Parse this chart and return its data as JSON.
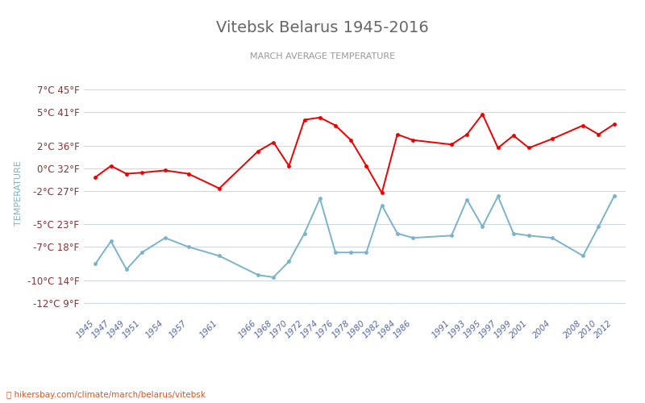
{
  "title": "Vitebsk Belarus 1945-2016",
  "subtitle": "MARCH AVERAGE TEMPERATURE",
  "ylabel": "TEMPERATURE",
  "url_text": "hikersbay.com/climate/march/belarus/vitebsk",
  "years": [
    1945,
    1947,
    1949,
    1951,
    1954,
    1957,
    1961,
    1966,
    1968,
    1970,
    1972,
    1974,
    1976,
    1978,
    1980,
    1982,
    1984,
    1986,
    1991,
    1993,
    1995,
    1997,
    1999,
    2001,
    2004,
    2008,
    2010,
    2012
  ],
  "day": [
    -0.8,
    0.2,
    -0.5,
    -0.4,
    -0.2,
    -0.5,
    -1.8,
    1.5,
    2.3,
    0.2,
    4.3,
    4.5,
    3.8,
    2.5,
    0.2,
    -2.2,
    3.0,
    2.5,
    2.1,
    3.0,
    4.8,
    1.8,
    2.9,
    1.8,
    2.6,
    3.8,
    3.0,
    3.9
  ],
  "night": [
    -8.5,
    -6.5,
    -9.0,
    -7.5,
    -6.2,
    -7.0,
    -7.8,
    -9.5,
    -9.7,
    -8.3,
    -5.8,
    -2.7,
    -7.5,
    -7.5,
    -7.5,
    -3.3,
    -5.8,
    -6.2,
    -6.0,
    -2.8,
    -5.2,
    -2.5,
    -5.8,
    -6.0,
    -6.2,
    -7.8,
    -5.2,
    -2.5
  ],
  "xlim": [
    1943.5,
    2013.5
  ],
  "ylim_min": -13,
  "ylim_max": 8.5,
  "yticks_c": [
    7,
    5,
    2,
    0,
    -2,
    -5,
    -7,
    -10,
    -12
  ],
  "yticks_f": [
    45,
    41,
    36,
    32,
    27,
    23,
    18,
    14,
    9
  ],
  "day_color": "#ee0000",
  "night_color": "#7ab3cc",
  "bg_color": "#ffffff",
  "grid_color": "#d0d8e0",
  "title_color": "#666666",
  "subtitle_color": "#999999",
  "axis_label_color": "#7ab3cc",
  "ytick_color": "#883333",
  "xtick_color": "#5566aa"
}
